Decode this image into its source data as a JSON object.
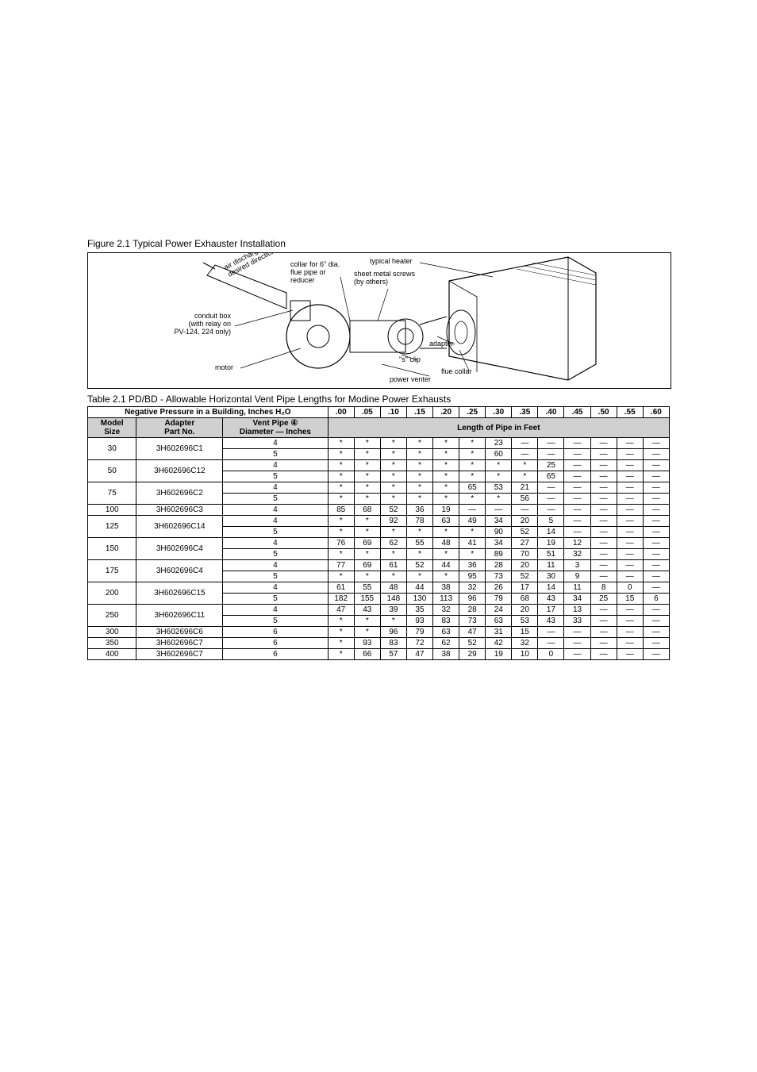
{
  "figure": {
    "caption": "Figure 2.1 Typical Power Exhauster Installation",
    "labels": {
      "air_discharge": "air discharge may be in any desired direction",
      "conduit_box": "conduit box\n(with relay on\nPV-124, 224 only)",
      "motor": "motor",
      "collar_for_6": "collar for 6\" dia.\nflue pipe or\nreducer",
      "typical_heater": "typical heater",
      "sheet_metal_screws": "sheet metal screws\n(by others)",
      "s_clip": "\"s\" clip",
      "power_venter": "power venter",
      "adapter": "adapter",
      "flue_collar": "flue collar"
    }
  },
  "table": {
    "caption": "Table 2.1 PD/BD - Allowable Horizontal Vent Pipe Lengths for Modine Power Exhausts",
    "header1_left": "Negative Pressure in a Building, Inches H₂O",
    "header1_cols": [
      ".00",
      ".05",
      ".10",
      ".15",
      ".20",
      ".25",
      ".30",
      ".35",
      ".40",
      ".45",
      ".50",
      ".55",
      ".60"
    ],
    "header2_model": "Model\nSize",
    "header2_adapter": "Adapter\nPart No.",
    "header2_diam": "Vent Pipe ④\nDiameter — Inches",
    "header2_right": "Length of Pipe in Feet",
    "groups": [
      {
        "model": "30",
        "adapter": "3H602696C1",
        "rows": [
          {
            "d": "4",
            "v": [
              "*",
              "*",
              "*",
              "*",
              "*",
              "*",
              "23",
              "—",
              "—",
              "—",
              "—",
              "—",
              "—"
            ]
          },
          {
            "d": "5",
            "v": [
              "*",
              "*",
              "*",
              "*",
              "*",
              "*",
              "60",
              "—",
              "—",
              "—",
              "—",
              "—",
              "—"
            ]
          }
        ]
      },
      {
        "model": "50",
        "adapter": "3H602696C12",
        "rows": [
          {
            "d": "4",
            "v": [
              "*",
              "*",
              "*",
              "*",
              "*",
              "*",
              "*",
              "*",
              "25",
              "—",
              "—",
              "—",
              "—"
            ]
          },
          {
            "d": "5",
            "v": [
              "*",
              "*",
              "*",
              "*",
              "*",
              "*",
              "*",
              "*",
              "65",
              "—",
              "—",
              "—",
              "—"
            ]
          }
        ]
      },
      {
        "model": "75",
        "adapter": "3H602696C2",
        "rows": [
          {
            "d": "4",
            "v": [
              "*",
              "*",
              "*",
              "*",
              "*",
              "65",
              "53",
              "21",
              "—",
              "—",
              "—",
              "—",
              "—"
            ]
          },
          {
            "d": "5",
            "v": [
              "*",
              "*",
              "*",
              "*",
              "*",
              "*",
              "*",
              "56",
              "—",
              "—",
              "—",
              "—",
              "—"
            ]
          }
        ]
      },
      {
        "model": "100",
        "adapter": "3H602696C3",
        "rows": [
          {
            "d": "4",
            "v": [
              "85",
              "68",
              "52",
              "36",
              "19",
              "—",
              "—",
              "—",
              "—",
              "—",
              "—",
              "—",
              "—"
            ]
          }
        ]
      },
      {
        "model": "125",
        "adapter": "3H602696C14",
        "rows": [
          {
            "d": "4",
            "v": [
              "*",
              "*",
              "92",
              "78",
              "63",
              "49",
              "34",
              "20",
              "5",
              "—",
              "—",
              "—",
              "—"
            ]
          },
          {
            "d": "5",
            "v": [
              "*",
              "*",
              "*",
              "*",
              "*",
              "*",
              "90",
              "52",
              "14",
              "—",
              "—",
              "—",
              "—"
            ]
          }
        ]
      },
      {
        "model": "150",
        "adapter": "3H602696C4",
        "rows": [
          {
            "d": "4",
            "v": [
              "76",
              "69",
              "62",
              "55",
              "48",
              "41",
              "34",
              "27",
              "19",
              "12",
              "—",
              "—",
              "—"
            ]
          },
          {
            "d": "5",
            "v": [
              "*",
              "*",
              "*",
              "*",
              "*",
              "*",
              "89",
              "70",
              "51",
              "32",
              "—",
              "—",
              "—"
            ]
          }
        ]
      },
      {
        "model": "175",
        "adapter": "3H602696C4",
        "rows": [
          {
            "d": "4",
            "v": [
              "77",
              "69",
              "61",
              "52",
              "44",
              "36",
              "28",
              "20",
              "11",
              "3",
              "—",
              "—",
              "—"
            ]
          },
          {
            "d": "5",
            "v": [
              "*",
              "*",
              "*",
              "*",
              "*",
              "95",
              "73",
              "52",
              "30",
              "9",
              "—",
              "—",
              "—"
            ]
          }
        ]
      },
      {
        "model": "200",
        "adapter": "3H602696C15",
        "rows": [
          {
            "d": "4",
            "v": [
              "61",
              "55",
              "48",
              "44",
              "38",
              "32",
              "26",
              "17",
              "14",
              "11",
              "8",
              "0",
              "—"
            ]
          },
          {
            "d": "5",
            "v": [
              "182",
              "155",
              "148",
              "130",
              "113",
              "96",
              "79",
              "68",
              "43",
              "34",
              "25",
              "15",
              "6"
            ]
          }
        ]
      },
      {
        "model": "250",
        "adapter": "3H602696C11",
        "rows": [
          {
            "d": "4",
            "v": [
              "47",
              "43",
              "39",
              "35",
              "32",
              "28",
              "24",
              "20",
              "17",
              "13",
              "—",
              "—",
              "—"
            ]
          },
          {
            "d": "5",
            "v": [
              "*",
              "*",
              "*",
              "93",
              "83",
              "73",
              "63",
              "53",
              "43",
              "33",
              "—",
              "—",
              "—"
            ]
          }
        ]
      },
      {
        "model": "300",
        "adapter": "3H602696C6",
        "rows": [
          {
            "d": "6",
            "v": [
              "*",
              "*",
              "96",
              "79",
              "63",
              "47",
              "31",
              "15",
              "—",
              "—",
              "—",
              "—",
              "—"
            ]
          }
        ]
      },
      {
        "model": "350",
        "adapter": "3H602696C7",
        "rows": [
          {
            "d": "6",
            "v": [
              "*",
              "93",
              "83",
              "72",
              "62",
              "52",
              "42",
              "32",
              "—",
              "—",
              "—",
              "—",
              "—"
            ]
          }
        ]
      },
      {
        "model": "400",
        "adapter": "3H602696C7",
        "rows": [
          {
            "d": "6",
            "v": [
              "*",
              "66",
              "57",
              "47",
              "38",
              "29",
              "19",
              "10",
              "0",
              "—",
              "—",
              "—",
              "—"
            ]
          }
        ]
      }
    ]
  }
}
